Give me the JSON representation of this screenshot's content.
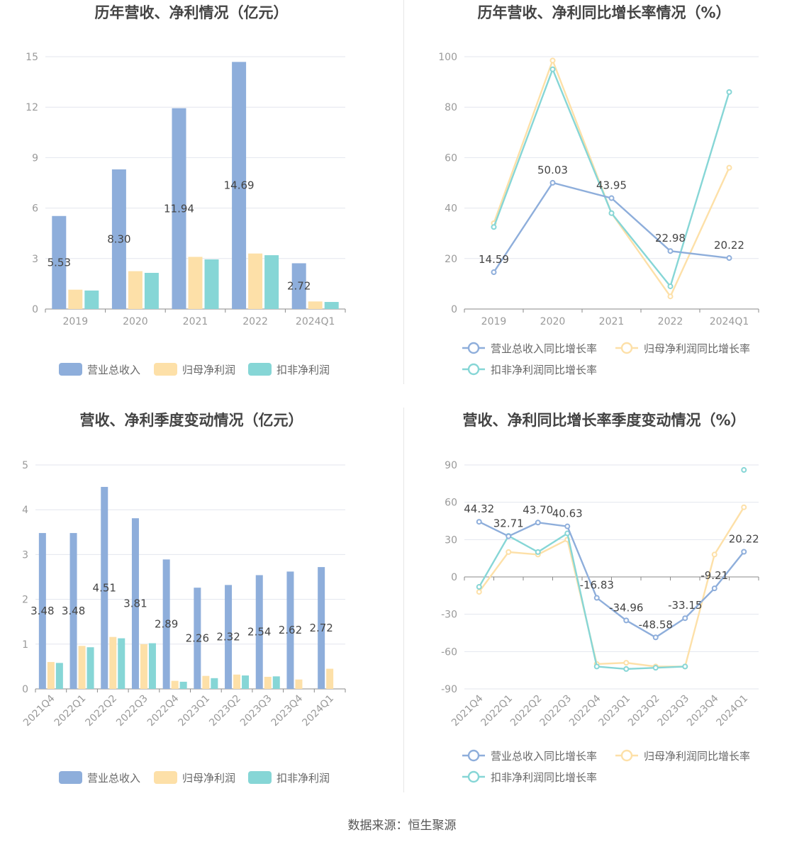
{
  "colors": {
    "revenue": "#8eaedb",
    "net_profit": "#fde0a8",
    "deducted_profit": "#86d6d6",
    "grid": "#e3e6ee",
    "axis": "#8a8a8a"
  },
  "source_text": "数据来源：恒生聚源",
  "chart_data": [
    {
      "id": "annual_values",
      "type": "bar",
      "title": "历年营收、净利情况（亿元）",
      "categories": [
        "2019",
        "2020",
        "2021",
        "2022",
        "2024Q1"
      ],
      "ylim": [
        0,
        15
      ],
      "yticks": [
        "0",
        "3",
        "6",
        "9",
        "12",
        "15"
      ],
      "series": [
        {
          "name": "营业总收入",
          "values": [
            5.53,
            8.3,
            11.94,
            14.69,
            2.72
          ],
          "labels": [
            "5.53",
            "8.30",
            "11.94",
            "14.69",
            "2.72"
          ]
        },
        {
          "name": "归母净利润",
          "values": [
            1.15,
            2.25,
            3.1,
            3.3,
            0.45
          ]
        },
        {
          "name": "扣非净利润",
          "values": [
            1.1,
            2.15,
            2.95,
            3.2,
            0.42
          ]
        }
      ],
      "legend": "bottom"
    },
    {
      "id": "annual_growth",
      "type": "line",
      "title": "历年营收、净利同比增长率情况（%）",
      "categories": [
        "2019",
        "2020",
        "2021",
        "2022",
        "2024Q1"
      ],
      "ylim": [
        0,
        100
      ],
      "yticks": [
        "0",
        "20",
        "40",
        "60",
        "80",
        "100"
      ],
      "series": [
        {
          "name": "营业总收入同比增长率",
          "values": [
            14.59,
            50.03,
            43.95,
            22.98,
            20.22
          ],
          "labels": [
            "14.59",
            "50.03",
            "43.95",
            "22.98",
            "20.22"
          ]
        },
        {
          "name": "归母净利润同比增长率",
          "values": [
            34,
            98.5,
            38,
            5,
            56
          ]
        },
        {
          "name": "扣非净利润同比增长率",
          "values": [
            32.5,
            95,
            38,
            9,
            86
          ]
        }
      ],
      "legend": "bottom"
    },
    {
      "id": "quarterly_values",
      "type": "bar",
      "title": "营收、净利季度变动情况（亿元）",
      "categories": [
        "2021Q4",
        "2022Q1",
        "2022Q2",
        "2022Q3",
        "2022Q4",
        "2023Q1",
        "2023Q2",
        "2023Q3",
        "2023Q4",
        "2024Q1"
      ],
      "ylim": [
        0,
        5
      ],
      "yticks": [
        "0",
        "1",
        "2",
        "3",
        "4",
        "5"
      ],
      "series": [
        {
          "name": "营业总收入",
          "values": [
            3.48,
            3.48,
            4.51,
            3.81,
            2.89,
            2.26,
            2.32,
            2.54,
            2.62,
            2.72
          ],
          "labels": [
            "3.48",
            "3.48",
            "4.51",
            "3.81",
            "2.89",
            "2.26",
            "2.32",
            "2.54",
            "2.62",
            "2.72"
          ]
        },
        {
          "name": "归母净利润",
          "values": [
            0.6,
            0.96,
            1.16,
            1.0,
            0.18,
            0.29,
            0.32,
            0.27,
            0.21,
            0.45
          ]
        },
        {
          "name": "扣非净利润",
          "values": [
            0.58,
            0.93,
            1.13,
            1.02,
            0.16,
            0.24,
            0.3,
            0.28,
            0,
            0
          ]
        }
      ],
      "legend": "bottom"
    },
    {
      "id": "quarterly_growth",
      "type": "line",
      "title": "营收、净利同比增长率季度变动情况（%）",
      "categories": [
        "2021Q4",
        "2022Q1",
        "2022Q2",
        "2022Q3",
        "2022Q4",
        "2023Q1",
        "2023Q2",
        "2023Q3",
        "2023Q4",
        "2024Q1"
      ],
      "ylim": [
        -90,
        90
      ],
      "yticks": [
        "-90",
        "-60",
        "-30",
        "0",
        "30",
        "60",
        "90"
      ],
      "series": [
        {
          "name": "营业总收入同比增长率",
          "values": [
            44.32,
            32.71,
            43.7,
            40.63,
            -16.83,
            -34.96,
            -48.58,
            -33.15,
            -9.21,
            20.22
          ],
          "labels": [
            "44.32",
            "32.71",
            "43.70",
            "40.63",
            "-16.83",
            "-34.96",
            "-48.58",
            "-33.15",
            "-9.21",
            "20.22"
          ]
        },
        {
          "name": "归母净利润同比增长率",
          "values": [
            -12,
            20,
            18,
            30,
            -70,
            -69,
            -72,
            -72,
            18,
            56
          ]
        },
        {
          "name": "扣非净利润同比增长率",
          "values": [
            -8,
            33,
            20,
            35,
            -72,
            -74,
            -73,
            -72,
            null,
            86
          ]
        }
      ],
      "legend": "bottom"
    }
  ]
}
